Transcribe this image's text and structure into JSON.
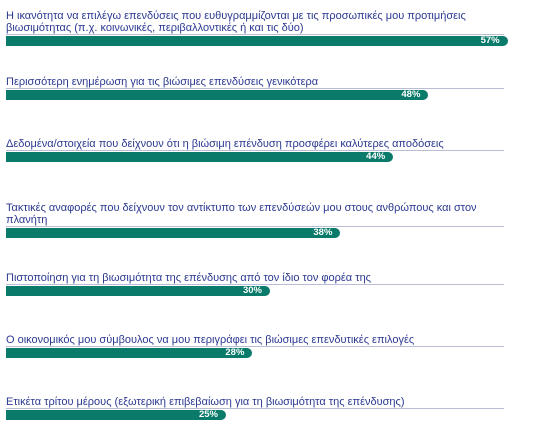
{
  "chart_data": {
    "type": "bar",
    "orientation": "horizontal",
    "unit": "%",
    "xlim": [
      0,
      100
    ],
    "color": "#0a7a6a",
    "label_color": "#2b3990",
    "categories": [
      "Η ικανότητα να επιλέγω επενδύσεις που ευθυγραμμίζονται με τις προσωπικές μου προτιμήσεις βιωσιμότητας (π.χ. κοινωνικές, περιβαλλοντικές ή και τις δύο)",
      "Περισσότερη ενημέρωση για τις βιώσιμες επενδύσεις γενικότερα",
      "Δεδομένα/στοιχεία που δείχνουν ότι η βιώσιμη επένδυση προσφέρει καλύτερες αποδόσεις",
      "Τακτικές αναφορές που δείχνουν τον αντίκτυπο των επενδύσεών μου στους ανθρώπους και στον πλανήτη",
      "Πιστοποίηση για τη βιωσιμότητα της επένδυσης από τον ίδιο τον φορέα της",
      "Ο οικονομικός μου σύμβουλος να μου περιγράφει τις βιώσιμες επενδυτικές επιλογές",
      "Ετικέτα τρίτου μέρους (εξωτερική επιβεβαίωση για τη βιωσιμότητα της επένδυσης)"
    ],
    "values": [
      57,
      48,
      44,
      38,
      30,
      28,
      25
    ],
    "value_labels": [
      "57%",
      "48%",
      "44%",
      "38%",
      "30%",
      "28%",
      "25%"
    ]
  }
}
